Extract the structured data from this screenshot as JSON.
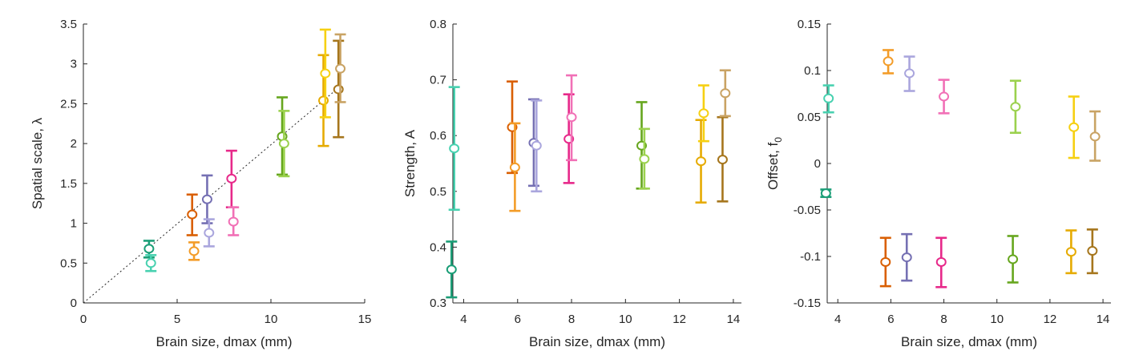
{
  "chart_data": [
    {
      "type": "scatter",
      "xlabel": "Brain size, dmax (mm)",
      "ylabel": "Spatial scale, λ",
      "xlim": [
        0,
        15
      ],
      "ylim": [
        0,
        3.5
      ],
      "xticks": [
        "0",
        "5",
        "10",
        "15"
      ],
      "yticks": [
        "0",
        "0.5",
        "1",
        "1.5",
        "2",
        "2.5",
        "3",
        "3.5"
      ],
      "xtick_values": [
        0,
        5,
        10,
        15
      ],
      "ytick_values": [
        0,
        0.5,
        1,
        1.5,
        2,
        2.5,
        3,
        3.5
      ],
      "reference_line": {
        "style": "dotted",
        "from": [
          0,
          0
        ],
        "to": [
          13.6,
          2.7
        ]
      },
      "points": [
        {
          "x": 3.5,
          "y": 0.68,
          "lo": 0.57,
          "hi": 0.78,
          "color": "#1b9e77"
        },
        {
          "x": 3.6,
          "y": 0.5,
          "lo": 0.4,
          "hi": 0.6,
          "color": "#48d1b0"
        },
        {
          "x": 5.8,
          "y": 1.11,
          "lo": 0.85,
          "hi": 1.36,
          "color": "#d95f02"
        },
        {
          "x": 5.9,
          "y": 0.65,
          "lo": 0.54,
          "hi": 0.76,
          "color": "#f39c28"
        },
        {
          "x": 6.6,
          "y": 1.3,
          "lo": 1.0,
          "hi": 1.6,
          "color": "#7570b3"
        },
        {
          "x": 6.7,
          "y": 0.88,
          "lo": 0.71,
          "hi": 1.05,
          "color": "#aaa6dd"
        },
        {
          "x": 7.9,
          "y": 1.56,
          "lo": 1.2,
          "hi": 1.91,
          "color": "#e7298a"
        },
        {
          "x": 8.0,
          "y": 1.02,
          "lo": 0.85,
          "hi": 1.2,
          "color": "#f170b6"
        },
        {
          "x": 10.6,
          "y": 2.09,
          "lo": 1.61,
          "hi": 2.58,
          "color": "#66a61e"
        },
        {
          "x": 10.7,
          "y": 2.0,
          "lo": 1.59,
          "hi": 2.41,
          "color": "#9bd14e"
        },
        {
          "x": 12.8,
          "y": 2.54,
          "lo": 1.97,
          "hi": 3.11,
          "color": "#e6ab02"
        },
        {
          "x": 12.9,
          "y": 2.88,
          "lo": 2.33,
          "hi": 3.43,
          "color": "#f6d012"
        },
        {
          "x": 13.6,
          "y": 2.68,
          "lo": 2.08,
          "hi": 3.29,
          "color": "#a6761d"
        },
        {
          "x": 13.7,
          "y": 2.94,
          "lo": 2.52,
          "hi": 3.37,
          "color": "#c9a364"
        }
      ]
    },
    {
      "type": "scatter",
      "xlabel": "Brain size, dmax (mm)",
      "ylabel": "Strength, A",
      "xlim": [
        3.6,
        14.3
      ],
      "ylim": [
        0.3,
        0.8
      ],
      "xticks": [
        "4",
        "6",
        "8",
        "10",
        "12",
        "14"
      ],
      "yticks": [
        "0.3",
        "0.4",
        "0.5",
        "0.6",
        "0.7",
        "0.8"
      ],
      "xtick_values": [
        4,
        6,
        8,
        10,
        12,
        14
      ],
      "ytick_values": [
        0.3,
        0.4,
        0.5,
        0.6,
        0.7,
        0.8
      ],
      "points": [
        {
          "x": 3.55,
          "y": 0.36,
          "lo": 0.31,
          "hi": 0.41,
          "color": "#1b9e77"
        },
        {
          "x": 3.65,
          "y": 0.577,
          "lo": 0.467,
          "hi": 0.687,
          "color": "#48d1b0"
        },
        {
          "x": 5.8,
          "y": 0.615,
          "lo": 0.533,
          "hi": 0.697,
          "color": "#d95f02"
        },
        {
          "x": 5.9,
          "y": 0.543,
          "lo": 0.465,
          "hi": 0.622,
          "color": "#f39c28"
        },
        {
          "x": 6.6,
          "y": 0.587,
          "lo": 0.51,
          "hi": 0.665,
          "color": "#7570b3"
        },
        {
          "x": 6.7,
          "y": 0.582,
          "lo": 0.5,
          "hi": 0.663,
          "color": "#aaa6dd"
        },
        {
          "x": 7.9,
          "y": 0.594,
          "lo": 0.515,
          "hi": 0.674,
          "color": "#e7298a"
        },
        {
          "x": 8.0,
          "y": 0.633,
          "lo": 0.556,
          "hi": 0.708,
          "color": "#f170b6"
        },
        {
          "x": 10.6,
          "y": 0.582,
          "lo": 0.505,
          "hi": 0.66,
          "color": "#66a61e"
        },
        {
          "x": 10.7,
          "y": 0.558,
          "lo": 0.505,
          "hi": 0.612,
          "color": "#9bd14e"
        },
        {
          "x": 12.8,
          "y": 0.554,
          "lo": 0.48,
          "hi": 0.628,
          "color": "#e6ab02"
        },
        {
          "x": 12.9,
          "y": 0.64,
          "lo": 0.59,
          "hi": 0.69,
          "color": "#f6d012"
        },
        {
          "x": 13.6,
          "y": 0.557,
          "lo": 0.482,
          "hi": 0.633,
          "color": "#a6761d"
        },
        {
          "x": 13.7,
          "y": 0.676,
          "lo": 0.635,
          "hi": 0.717,
          "color": "#c9a364"
        }
      ]
    },
    {
      "type": "scatter",
      "xlabel": "Brain size, dmax (mm)",
      "ylabel": "Offset, f",
      "ylabel_subscript": "0",
      "xlim": [
        3.6,
        14.3
      ],
      "ylim": [
        -0.15,
        0.15
      ],
      "xticks": [
        "4",
        "6",
        "8",
        "10",
        "12",
        "14"
      ],
      "yticks": [
        "-0.15",
        "-0.1",
        "-0.05",
        "0",
        "0.05",
        "0.1",
        "0.15"
      ],
      "xtick_values": [
        4,
        6,
        8,
        10,
        12,
        14
      ],
      "ytick_values": [
        -0.15,
        -0.1,
        -0.05,
        0,
        0.05,
        0.1,
        0.15
      ],
      "points": [
        {
          "x": 3.55,
          "y": -0.032,
          "lo": -0.036,
          "hi": -0.028,
          "color": "#1b9e77"
        },
        {
          "x": 3.65,
          "y": 0.07,
          "lo": 0.055,
          "hi": 0.084,
          "color": "#48d1b0"
        },
        {
          "x": 5.8,
          "y": -0.106,
          "lo": -0.132,
          "hi": -0.08,
          "color": "#d95f02"
        },
        {
          "x": 5.9,
          "y": 0.11,
          "lo": 0.097,
          "hi": 0.122,
          "color": "#f39c28"
        },
        {
          "x": 6.6,
          "y": -0.101,
          "lo": -0.126,
          "hi": -0.076,
          "color": "#7570b3"
        },
        {
          "x": 6.7,
          "y": 0.097,
          "lo": 0.078,
          "hi": 0.115,
          "color": "#aaa6dd"
        },
        {
          "x": 7.9,
          "y": -0.106,
          "lo": -0.133,
          "hi": -0.08,
          "color": "#e7298a"
        },
        {
          "x": 8.0,
          "y": 0.072,
          "lo": 0.054,
          "hi": 0.09,
          "color": "#f170b6"
        },
        {
          "x": 10.6,
          "y": -0.103,
          "lo": -0.128,
          "hi": -0.078,
          "color": "#66a61e"
        },
        {
          "x": 10.7,
          "y": 0.061,
          "lo": 0.033,
          "hi": 0.089,
          "color": "#9bd14e"
        },
        {
          "x": 12.8,
          "y": -0.095,
          "lo": -0.118,
          "hi": -0.072,
          "color": "#e6ab02"
        },
        {
          "x": 12.9,
          "y": 0.039,
          "lo": 0.006,
          "hi": 0.072,
          "color": "#f6d012"
        },
        {
          "x": 13.6,
          "y": -0.094,
          "lo": -0.118,
          "hi": -0.071,
          "color": "#a6761d"
        },
        {
          "x": 13.7,
          "y": 0.029,
          "lo": 0.003,
          "hi": 0.056,
          "color": "#c9a364"
        }
      ]
    }
  ]
}
